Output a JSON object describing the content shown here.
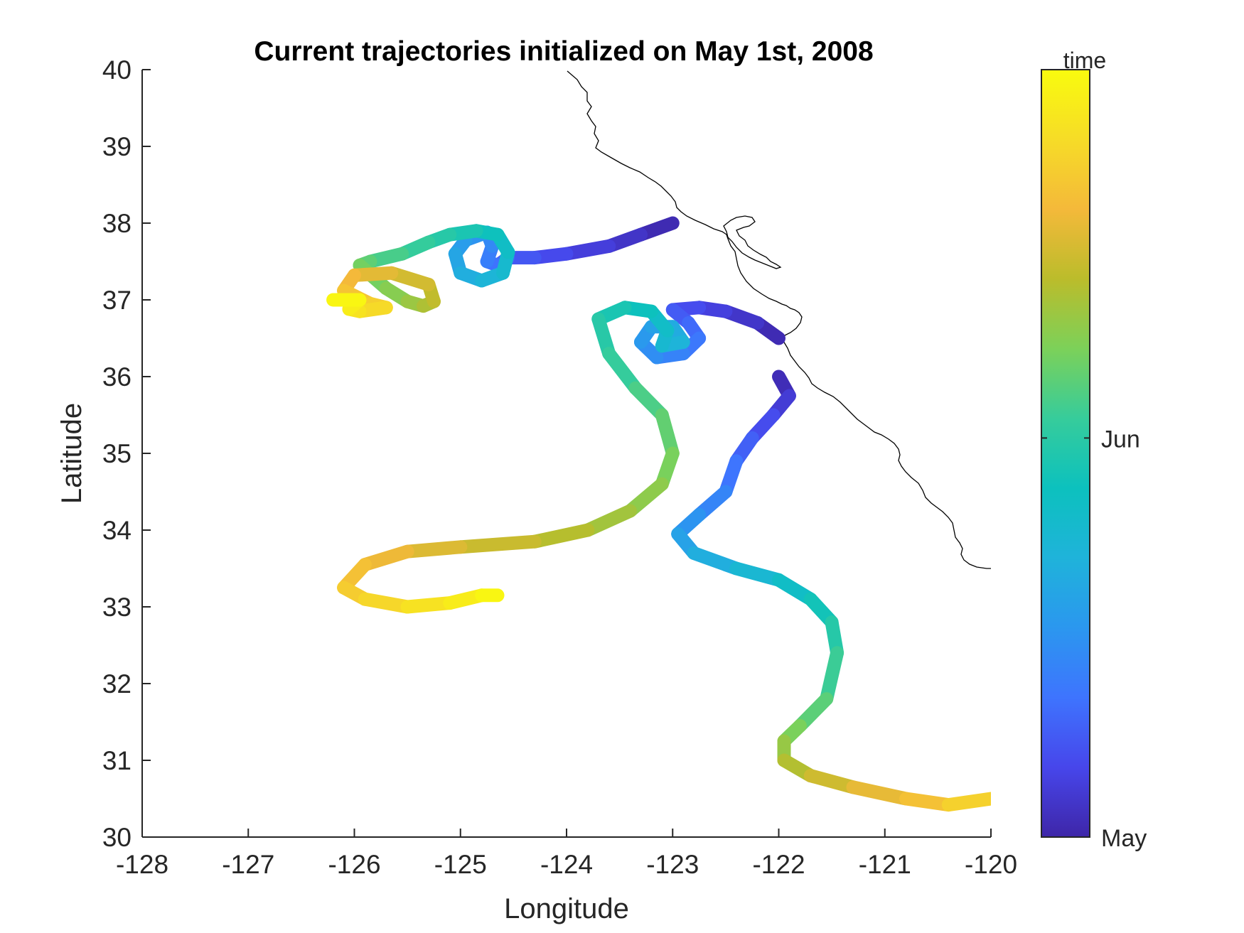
{
  "chart_data": {
    "type": "line",
    "title": "Current trajectories initialized on May 1st, 2008",
    "xlabel": "Longitude",
    "ylabel": "Latitude",
    "xlim": [
      -128,
      -120
    ],
    "ylim": [
      30,
      40
    ],
    "xticks": [
      -128,
      -127,
      -126,
      -125,
      -124,
      -123,
      -122,
      -121,
      -120
    ],
    "yticks": [
      30,
      31,
      32,
      33,
      34,
      35,
      36,
      37,
      38,
      39,
      40
    ],
    "grid": false,
    "colorbar": {
      "label": "time",
      "ticks": [
        "May",
        "Jun"
      ],
      "tick_positions": [
        0,
        0.52
      ],
      "colormap": [
        "#3e26a8",
        "#4746eb",
        "#3e74fe",
        "#2b97ef",
        "#1fb3da",
        "#0cc1be",
        "#36cc9b",
        "#7cd159",
        "#bbbc2b",
        "#f4b93a",
        "#f6dc27",
        "#f9fb0e"
      ]
    },
    "series": [
      {
        "points": [
          [
            -123.0,
            38.0
          ],
          [
            -123.3,
            37.85
          ],
          [
            -123.6,
            37.7
          ],
          [
            -124.0,
            37.6
          ],
          [
            -124.3,
            37.55
          ],
          [
            -124.55,
            37.55
          ],
          [
            -124.65,
            37.45
          ],
          [
            -124.75,
            37.5
          ],
          [
            -124.7,
            37.7
          ],
          [
            -124.75,
            37.88
          ],
          [
            -124.95,
            37.78
          ],
          [
            -125.05,
            37.6
          ],
          [
            -125.0,
            37.35
          ],
          [
            -124.8,
            37.25
          ],
          [
            -124.6,
            37.35
          ],
          [
            -124.55,
            37.62
          ],
          [
            -124.65,
            37.85
          ],
          [
            -124.85,
            37.9
          ],
          [
            -125.1,
            37.85
          ],
          [
            -125.3,
            37.75
          ],
          [
            -125.55,
            37.6
          ],
          [
            -125.85,
            37.5
          ],
          [
            -125.95,
            37.45
          ],
          [
            -125.7,
            37.15
          ],
          [
            -125.5,
            36.98
          ],
          [
            -125.35,
            36.92
          ],
          [
            -125.25,
            36.98
          ],
          [
            -125.3,
            37.2
          ],
          [
            -125.65,
            37.35
          ],
          [
            -126.0,
            37.32
          ],
          [
            -126.1,
            37.12
          ],
          [
            -125.85,
            36.95
          ],
          [
            -125.7,
            36.9
          ],
          [
            -125.95,
            36.85
          ],
          [
            -126.05,
            36.88
          ],
          [
            -125.95,
            37.0
          ],
          [
            -126.2,
            37.0
          ]
        ],
        "t_start": 0.0,
        "t_end": 1.0
      },
      {
        "points": [
          [
            -122.0,
            36.5
          ],
          [
            -122.2,
            36.7
          ],
          [
            -122.5,
            36.85
          ],
          [
            -122.75,
            36.9
          ],
          [
            -123.0,
            36.87
          ],
          [
            -122.85,
            36.7
          ],
          [
            -122.75,
            36.5
          ],
          [
            -122.9,
            36.3
          ],
          [
            -123.15,
            36.25
          ],
          [
            -123.3,
            36.45
          ],
          [
            -123.2,
            36.65
          ],
          [
            -123.0,
            36.65
          ],
          [
            -122.9,
            36.45
          ],
          [
            -123.1,
            36.4
          ],
          [
            -123.05,
            36.6
          ],
          [
            -123.2,
            36.85
          ],
          [
            -123.45,
            36.9
          ],
          [
            -123.7,
            36.75
          ],
          [
            -123.6,
            36.3
          ],
          [
            -123.35,
            35.85
          ],
          [
            -123.1,
            35.5
          ],
          [
            -123.0,
            35.0
          ],
          [
            -123.1,
            34.6
          ],
          [
            -123.4,
            34.25
          ],
          [
            -123.8,
            34.0
          ],
          [
            -124.3,
            33.85
          ],
          [
            -125.0,
            33.78
          ],
          [
            -125.5,
            33.72
          ],
          [
            -125.9,
            33.55
          ],
          [
            -126.1,
            33.25
          ],
          [
            -125.9,
            33.1
          ],
          [
            -125.5,
            33.0
          ],
          [
            -125.1,
            33.05
          ],
          [
            -124.8,
            33.15
          ],
          [
            -124.65,
            33.15
          ]
        ],
        "t_start": 0.0,
        "t_end": 1.0
      },
      {
        "points": [
          [
            -122.0,
            36.0
          ],
          [
            -121.9,
            35.75
          ],
          [
            -122.05,
            35.5
          ],
          [
            -122.25,
            35.2
          ],
          [
            -122.4,
            34.9
          ],
          [
            -122.5,
            34.5
          ],
          [
            -122.75,
            34.2
          ],
          [
            -122.95,
            33.95
          ],
          [
            -122.8,
            33.7
          ],
          [
            -122.4,
            33.5
          ],
          [
            -122.0,
            33.35
          ],
          [
            -121.7,
            33.1
          ],
          [
            -121.5,
            32.8
          ],
          [
            -121.45,
            32.4
          ],
          [
            -121.55,
            31.8
          ],
          [
            -121.8,
            31.45
          ],
          [
            -121.95,
            31.25
          ],
          [
            -121.95,
            31.0
          ],
          [
            -121.7,
            30.8
          ],
          [
            -121.3,
            30.65
          ],
          [
            -120.8,
            30.5
          ],
          [
            -120.4,
            30.42
          ],
          [
            -120.0,
            30.5
          ]
        ],
        "t_start": 0.0,
        "t_end": 0.9
      }
    ]
  }
}
